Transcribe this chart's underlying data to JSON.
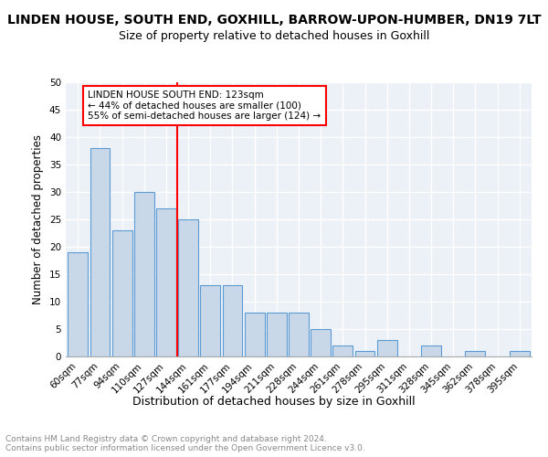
{
  "title": "LINDEN HOUSE, SOUTH END, GOXHILL, BARROW-UPON-HUMBER, DN19 7LT",
  "subtitle": "Size of property relative to detached houses in Goxhill",
  "xlabel": "Distribution of detached houses by size in Goxhill",
  "ylabel": "Number of detached properties",
  "categories": [
    "60sqm",
    "77sqm",
    "94sqm",
    "110sqm",
    "127sqm",
    "144sqm",
    "161sqm",
    "177sqm",
    "194sqm",
    "211sqm",
    "228sqm",
    "244sqm",
    "261sqm",
    "278sqm",
    "295sqm",
    "311sqm",
    "328sqm",
    "345sqm",
    "362sqm",
    "378sqm",
    "395sqm"
  ],
  "values": [
    19,
    38,
    23,
    30,
    27,
    25,
    13,
    13,
    8,
    8,
    8,
    5,
    2,
    1,
    3,
    0,
    2,
    0,
    1,
    0,
    1
  ],
  "bar_color": "#c8d8e8",
  "bar_edge_color": "#5b9bd5",
  "vline_x": 4.5,
  "vline_color": "red",
  "annotation_text": "LINDEN HOUSE SOUTH END: 123sqm\n← 44% of detached houses are smaller (100)\n55% of semi-detached houses are larger (124) →",
  "annotation_box_color": "white",
  "annotation_box_edge": "red",
  "ylim": [
    0,
    50
  ],
  "yticks": [
    0,
    5,
    10,
    15,
    20,
    25,
    30,
    35,
    40,
    45,
    50
  ],
  "footer": "Contains HM Land Registry data © Crown copyright and database right 2024.\nContains public sector information licensed under the Open Government Licence v3.0.",
  "background_color": "#ecf1f7",
  "grid_color": "#ffffff",
  "title_fontsize": 10,
  "subtitle_fontsize": 9,
  "tick_fontsize": 7.5,
  "ylabel_fontsize": 8.5,
  "xlabel_fontsize": 9,
  "footer_fontsize": 6.5,
  "footer_color": "#888888"
}
